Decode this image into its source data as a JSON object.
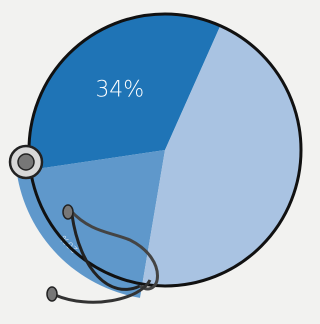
{
  "chart_data": {
    "type": "pie",
    "values": [
      34,
      20,
      46
    ],
    "value_labels": [
      "34%",
      "20%",
      null
    ],
    "colors": [
      "#1f74b6",
      "#5f98cb",
      "#a9c3e2"
    ]
  }
}
